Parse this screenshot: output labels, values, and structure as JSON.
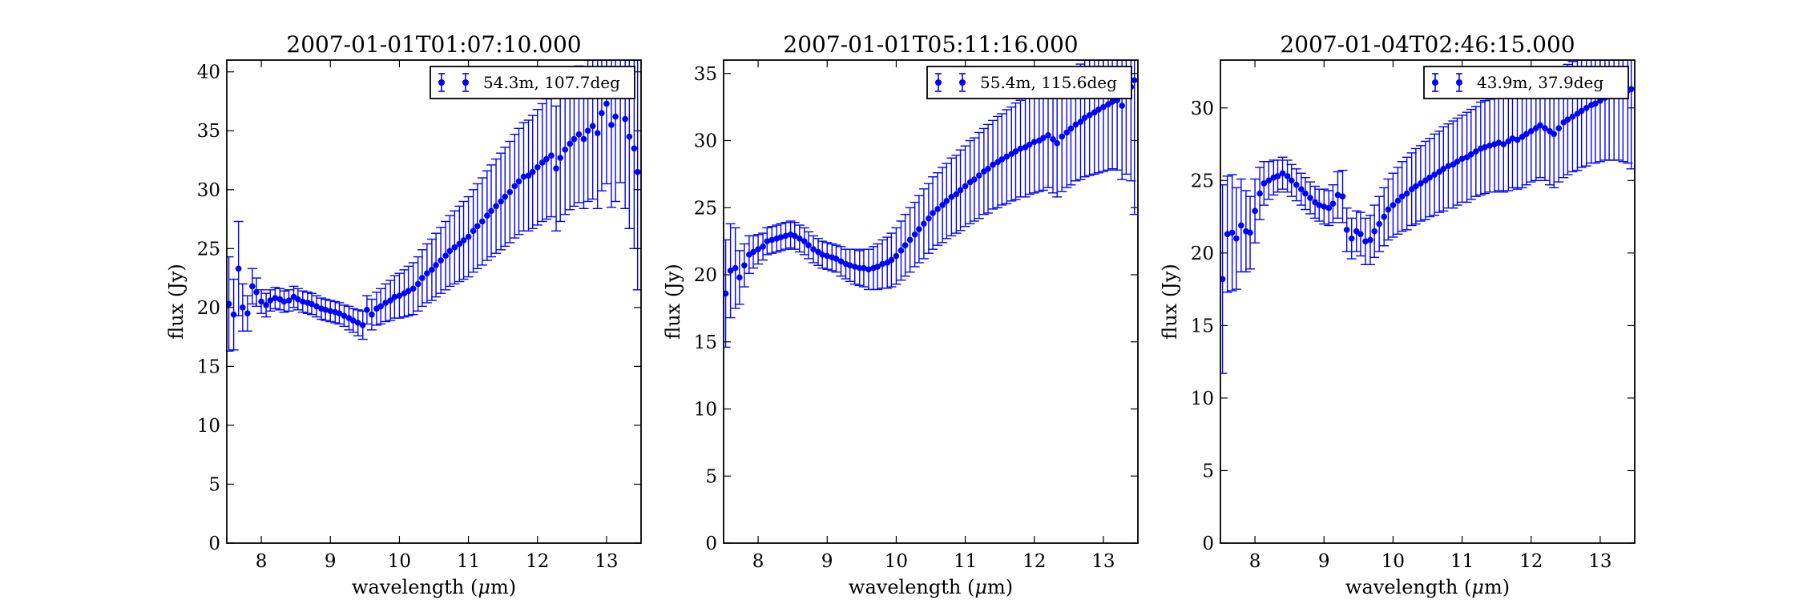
{
  "figure": {
    "panels_count": 3
  },
  "chart_data": [
    {
      "type": "scatter",
      "title": "2007-01-01T01:07:10.000",
      "xlabel_prefix": "wavelength (",
      "xlabel_mu": "μ",
      "xlabel_suffix": "m)",
      "ylabel": "flux (Jy)",
      "xlim": [
        7.5,
        13.5
      ],
      "ylim": [
        0,
        41
      ],
      "xticks": [
        "8",
        "9",
        "10",
        "11",
        "12",
        "13"
      ],
      "yticks": [
        "0",
        "5",
        "10",
        "15",
        "20",
        "25",
        "30",
        "35",
        "40"
      ],
      "grid": false,
      "legend_position": "top-right",
      "series": [
        {
          "name": "54.3m, 107.7deg",
          "color": "#0000ff",
          "x": [
            7.53,
            7.6,
            7.67,
            7.73,
            7.8,
            7.87,
            7.93,
            8.0,
            8.07,
            8.13,
            8.2,
            8.27,
            8.33,
            8.4,
            8.47,
            8.53,
            8.6,
            8.67,
            8.73,
            8.8,
            8.87,
            8.93,
            9.0,
            9.07,
            9.13,
            9.2,
            9.27,
            9.33,
            9.4,
            9.47,
            9.53,
            9.6,
            9.67,
            9.73,
            9.8,
            9.87,
            9.93,
            10.0,
            10.07,
            10.13,
            10.2,
            10.27,
            10.33,
            10.4,
            10.47,
            10.53,
            10.6,
            10.67,
            10.73,
            10.8,
            10.87,
            10.93,
            11.0,
            11.07,
            11.13,
            11.2,
            11.27,
            11.33,
            11.4,
            11.47,
            11.53,
            11.6,
            11.67,
            11.73,
            11.8,
            11.87,
            11.93,
            12.0,
            12.07,
            12.13,
            12.2,
            12.27,
            12.33,
            12.4,
            12.47,
            12.53,
            12.6,
            12.67,
            12.73,
            12.8,
            12.87,
            12.93,
            13.0,
            13.07,
            13.13,
            13.2,
            13.27,
            13.33,
            13.4,
            13.45
          ],
          "y": [
            20.3,
            19.4,
            23.3,
            20.0,
            19.5,
            21.8,
            21.3,
            20.5,
            20.2,
            20.6,
            20.8,
            20.7,
            20.5,
            20.6,
            20.9,
            20.7,
            20.5,
            20.4,
            20.3,
            20.1,
            19.9,
            19.8,
            19.7,
            19.6,
            19.5,
            19.3,
            19.1,
            18.9,
            18.7,
            18.5,
            19.8,
            19.4,
            19.9,
            20.1,
            20.4,
            20.6,
            20.9,
            21.0,
            21.2,
            21.4,
            21.6,
            22.0,
            22.5,
            22.9,
            23.2,
            23.6,
            24.0,
            24.4,
            24.8,
            25.1,
            25.4,
            25.7,
            26.0,
            26.5,
            26.9,
            27.3,
            27.8,
            28.2,
            28.6,
            29.0,
            29.4,
            29.8,
            30.3,
            30.7,
            31.1,
            31.2,
            31.5,
            31.9,
            32.3,
            32.6,
            32.9,
            31.8,
            32.7,
            33.4,
            33.9,
            34.3,
            34.7,
            34.3,
            35.0,
            35.4,
            34.8,
            36.5,
            37.3,
            35.5,
            36.2,
            38.0,
            36.0,
            34.5,
            33.5,
            31.5
          ],
          "yerr": [
            4.0,
            3.0,
            4.0,
            2.0,
            1.5,
            1.5,
            1.2,
            1.0,
            1.0,
            0.9,
            0.9,
            0.9,
            0.9,
            0.9,
            0.9,
            0.9,
            0.9,
            0.9,
            0.9,
            0.9,
            0.9,
            0.9,
            0.9,
            0.9,
            0.9,
            0.9,
            1.0,
            1.0,
            1.1,
            1.2,
            1.2,
            1.3,
            1.4,
            1.5,
            1.6,
            1.7,
            1.8,
            1.9,
            2.0,
            2.1,
            2.2,
            2.3,
            2.4,
            2.5,
            2.6,
            2.7,
            2.8,
            2.9,
            3.0,
            3.1,
            3.2,
            3.3,
            3.4,
            3.5,
            3.6,
            3.7,
            3.8,
            3.9,
            4.0,
            4.1,
            4.2,
            4.3,
            4.4,
            4.5,
            4.6,
            4.7,
            4.8,
            4.9,
            5.0,
            5.1,
            5.2,
            5.3,
            5.4,
            5.5,
            5.6,
            5.7,
            5.8,
            5.9,
            6.0,
            6.2,
            6.4,
            6.6,
            6.8,
            7.0,
            7.2,
            7.4,
            7.6,
            7.8,
            8.5,
            10.0
          ]
        }
      ]
    },
    {
      "type": "scatter",
      "title": "2007-01-01T05:11:16.000",
      "xlabel_prefix": "wavelength (",
      "xlabel_mu": "μ",
      "xlabel_suffix": "m)",
      "ylabel": "flux (Jy)",
      "xlim": [
        7.5,
        13.5
      ],
      "ylim": [
        0,
        36
      ],
      "xticks": [
        "8",
        "9",
        "10",
        "11",
        "12",
        "13"
      ],
      "yticks": [
        "0",
        "5",
        "10",
        "15",
        "20",
        "25",
        "30",
        "35"
      ],
      "grid": false,
      "legend_position": "top-right",
      "series": [
        {
          "name": "55.4m, 115.6deg",
          "color": "#0000ff",
          "x": [
            7.53,
            7.6,
            7.67,
            7.73,
            7.8,
            7.87,
            7.93,
            8.0,
            8.07,
            8.13,
            8.2,
            8.27,
            8.33,
            8.4,
            8.47,
            8.53,
            8.6,
            8.67,
            8.73,
            8.8,
            8.87,
            8.93,
            9.0,
            9.07,
            9.13,
            9.2,
            9.27,
            9.33,
            9.4,
            9.47,
            9.53,
            9.6,
            9.67,
            9.73,
            9.8,
            9.87,
            9.93,
            10.0,
            10.07,
            10.13,
            10.2,
            10.27,
            10.33,
            10.4,
            10.47,
            10.53,
            10.6,
            10.67,
            10.73,
            10.8,
            10.87,
            10.93,
            11.0,
            11.07,
            11.13,
            11.2,
            11.27,
            11.33,
            11.4,
            11.47,
            11.53,
            11.6,
            11.67,
            11.73,
            11.8,
            11.87,
            11.93,
            12.0,
            12.07,
            12.13,
            12.2,
            12.27,
            12.33,
            12.4,
            12.47,
            12.53,
            12.6,
            12.67,
            12.73,
            12.8,
            12.87,
            12.93,
            13.0,
            13.07,
            13.13,
            13.2,
            13.27,
            13.33,
            13.4,
            13.45
          ],
          "y": [
            18.6,
            20.3,
            20.5,
            19.8,
            20.7,
            21.5,
            21.7,
            21.9,
            22.1,
            22.5,
            22.6,
            22.7,
            22.8,
            22.9,
            23.0,
            22.9,
            22.7,
            22.5,
            22.2,
            21.9,
            21.7,
            21.5,
            21.4,
            21.3,
            21.2,
            21.0,
            20.8,
            20.7,
            20.6,
            20.5,
            20.5,
            20.4,
            20.5,
            20.6,
            20.8,
            20.9,
            21.1,
            21.4,
            21.8,
            22.2,
            22.6,
            23.0,
            23.4,
            23.8,
            24.2,
            24.6,
            24.9,
            25.2,
            25.5,
            25.8,
            26.0,
            26.3,
            26.6,
            26.9,
            27.1,
            27.4,
            27.7,
            27.9,
            28.2,
            28.4,
            28.6,
            28.8,
            29.0,
            29.2,
            29.4,
            29.5,
            29.7,
            29.9,
            30.0,
            30.2,
            30.4,
            30.1,
            29.8,
            30.3,
            30.6,
            30.9,
            31.2,
            31.4,
            31.7,
            31.9,
            32.1,
            32.3,
            32.5,
            32.7,
            32.9,
            33.0,
            32.6,
            33.5,
            34.0,
            34.5
          ],
          "yerr": [
            4.0,
            3.5,
            3.0,
            2.0,
            1.6,
            1.4,
            1.2,
            1.1,
            1.0,
            1.0,
            1.0,
            1.0,
            1.0,
            1.0,
            1.0,
            1.0,
            1.0,
            1.0,
            1.0,
            1.0,
            1.0,
            1.0,
            1.0,
            1.0,
            1.0,
            1.1,
            1.1,
            1.2,
            1.3,
            1.3,
            1.4,
            1.5,
            1.6,
            1.7,
            1.8,
            1.9,
            2.0,
            2.1,
            2.2,
            2.3,
            2.4,
            2.4,
            2.5,
            2.6,
            2.6,
            2.7,
            2.7,
            2.8,
            2.8,
            2.9,
            2.9,
            3.0,
            3.0,
            3.1,
            3.1,
            3.2,
            3.2,
            3.3,
            3.3,
            3.4,
            3.4,
            3.5,
            3.5,
            3.6,
            3.6,
            3.7,
            3.7,
            3.8,
            3.8,
            3.9,
            3.9,
            4.0,
            4.0,
            4.1,
            4.1,
            4.2,
            4.2,
            4.3,
            4.4,
            4.5,
            4.6,
            4.7,
            4.8,
            4.9,
            5.0,
            5.2,
            5.5,
            6.0,
            7.0,
            10.0
          ]
        }
      ]
    },
    {
      "type": "scatter",
      "title": "2007-01-04T02:46:15.000",
      "xlabel_prefix": "wavelength (",
      "xlabel_mu": "μ",
      "xlabel_suffix": "m)",
      "ylabel": "flux (Jy)",
      "xlim": [
        7.5,
        13.5
      ],
      "ylim": [
        0,
        33.3
      ],
      "xticks": [
        "8",
        "9",
        "10",
        "11",
        "12",
        "13"
      ],
      "yticks": [
        "0",
        "5",
        "10",
        "15",
        "20",
        "25",
        "30"
      ],
      "grid": false,
      "legend_position": "top-right",
      "series": [
        {
          "name": "43.9m, 37.9deg",
          "color": "#0000ff",
          "x": [
            7.53,
            7.6,
            7.67,
            7.73,
            7.8,
            7.87,
            7.93,
            8.0,
            8.07,
            8.13,
            8.2,
            8.27,
            8.33,
            8.4,
            8.47,
            8.53,
            8.6,
            8.67,
            8.73,
            8.8,
            8.87,
            8.93,
            9.0,
            9.07,
            9.13,
            9.2,
            9.27,
            9.33,
            9.4,
            9.47,
            9.53,
            9.6,
            9.67,
            9.73,
            9.8,
            9.87,
            9.93,
            10.0,
            10.07,
            10.13,
            10.2,
            10.27,
            10.33,
            10.4,
            10.47,
            10.53,
            10.6,
            10.67,
            10.73,
            10.8,
            10.87,
            10.93,
            11.0,
            11.07,
            11.13,
            11.2,
            11.27,
            11.33,
            11.4,
            11.47,
            11.53,
            11.6,
            11.67,
            11.73,
            11.8,
            11.87,
            11.93,
            12.0,
            12.07,
            12.13,
            12.2,
            12.27,
            12.33,
            12.4,
            12.47,
            12.53,
            12.6,
            12.67,
            12.73,
            12.8,
            12.87,
            12.93,
            13.0,
            13.07,
            13.13,
            13.2,
            13.27,
            13.33,
            13.4,
            13.45
          ],
          "y": [
            18.2,
            21.3,
            21.4,
            21.0,
            21.9,
            21.5,
            21.4,
            22.9,
            24.1,
            24.8,
            25.0,
            25.2,
            25.3,
            25.5,
            25.3,
            25.0,
            24.7,
            24.4,
            24.1,
            23.8,
            23.5,
            23.3,
            23.2,
            23.1,
            23.4,
            24.0,
            23.9,
            21.6,
            21.0,
            21.5,
            21.3,
            20.8,
            20.9,
            21.5,
            22.0,
            22.5,
            23.0,
            23.3,
            23.6,
            23.9,
            24.1,
            24.4,
            24.6,
            24.8,
            25.0,
            25.2,
            25.4,
            25.6,
            25.8,
            26.0,
            26.1,
            26.3,
            26.5,
            26.6,
            26.8,
            27.0,
            27.2,
            27.3,
            27.4,
            27.5,
            27.6,
            27.5,
            27.7,
            27.9,
            27.8,
            28.0,
            28.2,
            28.4,
            28.6,
            28.8,
            28.6,
            28.4,
            28.2,
            28.6,
            29.0,
            29.2,
            29.4,
            29.6,
            29.8,
            30.0,
            30.2,
            30.3,
            30.5,
            30.7,
            30.8,
            30.9,
            31.0,
            31.1,
            31.2,
            31.3
          ],
          "yerr": [
            6.5,
            4.0,
            4.0,
            3.5,
            3.2,
            2.8,
            2.5,
            2.2,
            1.8,
            1.5,
            1.3,
            1.2,
            1.1,
            1.1,
            1.1,
            1.1,
            1.1,
            1.1,
            1.1,
            1.1,
            1.1,
            1.1,
            1.2,
            1.2,
            1.3,
            1.6,
            1.8,
            1.5,
            1.4,
            1.4,
            1.5,
            1.6,
            1.7,
            1.8,
            1.9,
            2.0,
            2.1,
            2.2,
            2.3,
            2.4,
            2.5,
            2.5,
            2.6,
            2.6,
            2.7,
            2.7,
            2.8,
            2.8,
            2.9,
            2.9,
            3.0,
            3.0,
            3.0,
            3.1,
            3.1,
            3.1,
            3.2,
            3.2,
            3.2,
            3.3,
            3.3,
            3.3,
            3.4,
            3.4,
            3.4,
            3.5,
            3.5,
            3.5,
            3.6,
            3.6,
            3.6,
            3.7,
            3.7,
            3.7,
            3.8,
            3.8,
            3.8,
            3.9,
            3.9,
            4.0,
            4.0,
            4.1,
            4.2,
            4.3,
            4.4,
            4.5,
            4.6,
            4.8,
            5.0,
            5.5
          ]
        }
      ]
    }
  ]
}
